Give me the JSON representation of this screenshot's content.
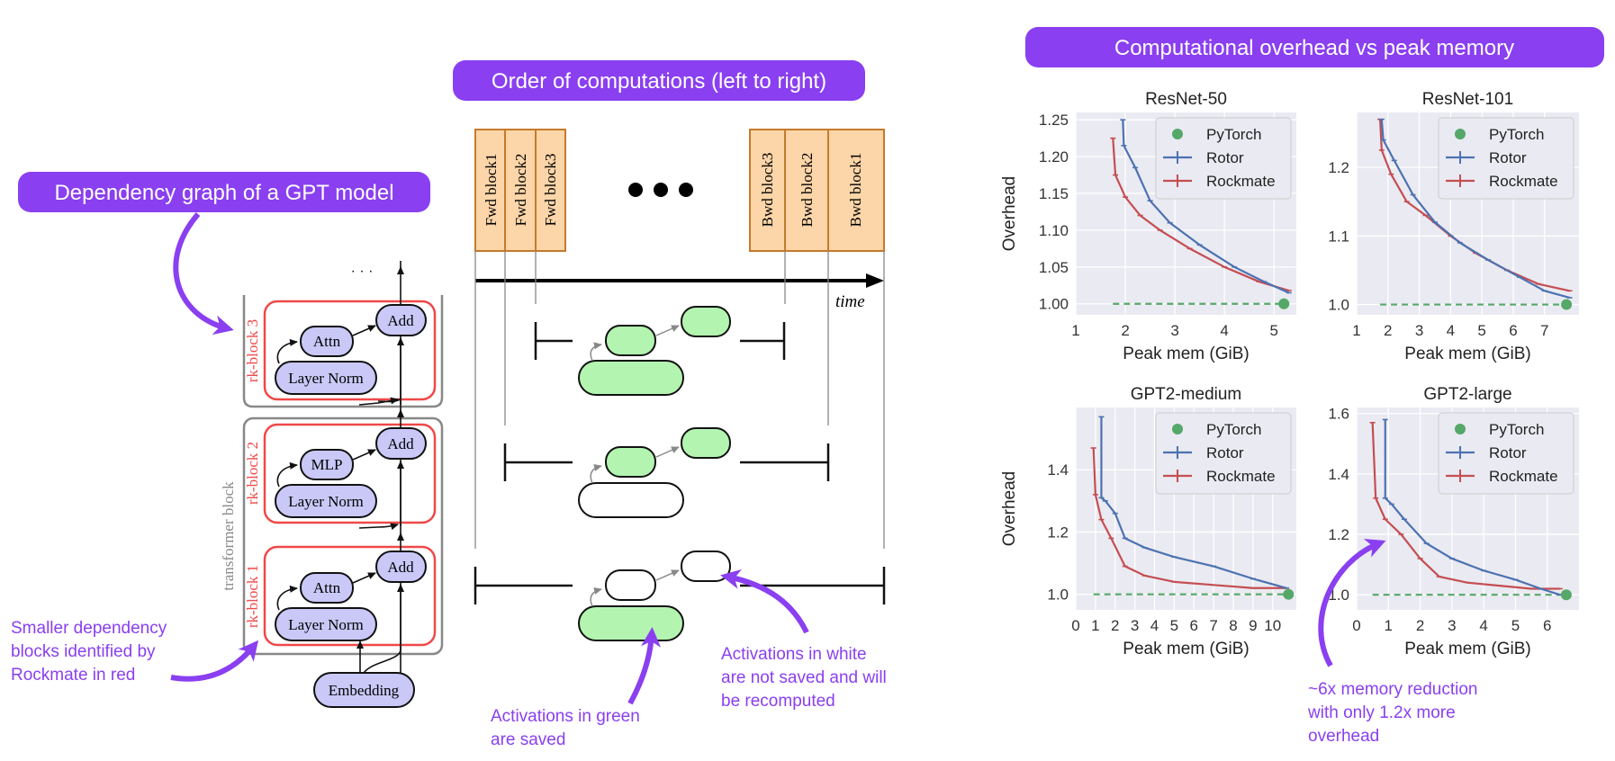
{
  "headers": {
    "dependency": "Dependency graph of a GPT model",
    "order": "Order of computations (left to right)",
    "overhead": "Computational overhead vs peak memory"
  },
  "graph": {
    "blocks": [
      "rk-block 3",
      "rk-block 2",
      "rk-block 1"
    ],
    "transformer_label": "transformer block",
    "nodes": {
      "add": "Add",
      "attn": "Attn",
      "mlp": "MLP",
      "layer_norm": "Layer Norm",
      "embedding": "Embedding"
    },
    "ellipsis": "· · ·"
  },
  "order": {
    "fwd_blocks": [
      "Fwd block1",
      "Fwd block2",
      "Fwd block3"
    ],
    "bwd_blocks": [
      "Bwd block3",
      "Bwd block2",
      "Bwd block1"
    ],
    "time_label": "time"
  },
  "annotations": {
    "smaller_blocks": [
      "Smaller dependency",
      "blocks identified by",
      "Rockmate in red"
    ],
    "green_saved": [
      "Activations in green",
      "are saved"
    ],
    "white_recomputed": [
      "Activations in white",
      "are not saved and will",
      "be recomputed"
    ],
    "memory_reduction": [
      "~6x memory reduction",
      "with only 1.2x more",
      "overhead"
    ]
  },
  "colors": {
    "accent": "#8a3ff0",
    "rotor": "#4c72b0",
    "rockmate": "#c44e52",
    "pytorch": "#55a868",
    "activation_green": "#b3f5b0",
    "block_orange": "#fcd5a8",
    "node_lavender": "#c9c8f7",
    "rk_red": "#f04848"
  },
  "chart_data": [
    {
      "type": "line",
      "title": "ResNet-50",
      "xlabel": "Peak mem (GiB)",
      "ylabel": "Overhead",
      "xlim": [
        1,
        5.45
      ],
      "ylim": [
        0.985,
        1.26
      ],
      "xticks": [
        "1",
        "2",
        "3",
        "4",
        "5"
      ],
      "yticks": [
        "1.00",
        "1.05",
        "1.10",
        "1.15",
        "1.20",
        "1.25"
      ],
      "legend": [
        "PyTorch",
        "Rotor",
        "Rockmate"
      ],
      "legend_position": "top-right",
      "series": [
        {
          "name": "PyTorch",
          "x": [
            5.2
          ],
          "y": [
            1.0
          ]
        },
        {
          "name": "Rotor",
          "x": [
            1.95,
            1.97,
            2.2,
            2.5,
            2.9,
            3.5,
            4.2,
            4.8,
            5.3
          ],
          "y": [
            1.25,
            1.215,
            1.185,
            1.14,
            1.11,
            1.08,
            1.05,
            1.03,
            1.015
          ]
        },
        {
          "name": "Rockmate",
          "x": [
            1.75,
            1.8,
            2.0,
            2.3,
            2.7,
            3.3,
            4.0,
            4.7,
            5.3
          ],
          "y": [
            1.225,
            1.175,
            1.145,
            1.12,
            1.1,
            1.075,
            1.05,
            1.03,
            1.018
          ]
        }
      ]
    },
    {
      "type": "line",
      "title": "ResNet-101",
      "xlabel": "Peak mem (GiB)",
      "ylabel": "",
      "xlim": [
        1,
        8.1
      ],
      "ylim": [
        0.985,
        1.28
      ],
      "xticks": [
        "1",
        "2",
        "3",
        "4",
        "5",
        "6",
        "7"
      ],
      "yticks": [
        "1.0",
        "1.1",
        "1.2"
      ],
      "legend": [
        "PyTorch",
        "Rotor",
        "Rockmate"
      ],
      "legend_position": "top-right",
      "series": [
        {
          "name": "PyTorch",
          "x": [
            7.7
          ],
          "y": [
            1.0
          ]
        },
        {
          "name": "Rotor",
          "x": [
            1.8,
            1.85,
            2.2,
            2.8,
            3.5,
            4.3,
            5.2,
            6.2,
            7.0,
            7.8
          ],
          "y": [
            1.27,
            1.24,
            1.21,
            1.16,
            1.12,
            1.09,
            1.065,
            1.04,
            1.02,
            1.01
          ]
        },
        {
          "name": "Rockmate",
          "x": [
            1.75,
            1.8,
            2.1,
            2.6,
            3.2,
            4.0,
            4.8,
            5.8,
            6.8,
            7.8
          ],
          "y": [
            1.27,
            1.225,
            1.19,
            1.15,
            1.13,
            1.1,
            1.075,
            1.05,
            1.03,
            1.02
          ]
        }
      ]
    },
    {
      "type": "line",
      "title": "GPT2-medium",
      "xlabel": "Peak mem (GiB)",
      "ylabel": "Overhead",
      "xlim": [
        0,
        11.2
      ],
      "ylim": [
        0.95,
        1.6
      ],
      "xticks": [
        "0",
        "1",
        "2",
        "3",
        "4",
        "5",
        "6",
        "7",
        "8",
        "9",
        "10"
      ],
      "yticks": [
        "1.0",
        "1.2",
        "1.4"
      ],
      "legend": [
        "PyTorch",
        "Rotor",
        "Rockmate"
      ],
      "legend_position": "top-right",
      "series": [
        {
          "name": "PyTorch",
          "x": [
            10.8
          ],
          "y": [
            1.0
          ]
        },
        {
          "name": "Rotor",
          "x": [
            1.3,
            1.3,
            1.5,
            2.0,
            2.5,
            3.5,
            5.0,
            7.0,
            9.0,
            10.7
          ],
          "y": [
            1.57,
            1.31,
            1.3,
            1.26,
            1.18,
            1.15,
            1.12,
            1.09,
            1.05,
            1.02
          ]
        },
        {
          "name": "Rockmate",
          "x": [
            0.9,
            1.0,
            1.3,
            1.8,
            2.5,
            3.5,
            5.0,
            7.0,
            9.0,
            10.7
          ],
          "y": [
            1.47,
            1.32,
            1.24,
            1.18,
            1.09,
            1.06,
            1.04,
            1.03,
            1.02,
            1.02
          ]
        }
      ]
    },
    {
      "type": "line",
      "title": "GPT2-large",
      "xlabel": "Peak mem (GiB)",
      "ylabel": "",
      "xlim": [
        0,
        7.0
      ],
      "ylim": [
        0.95,
        1.62
      ],
      "xticks": [
        "0",
        "1",
        "2",
        "3",
        "4",
        "5",
        "6"
      ],
      "yticks": [
        "1.0",
        "1.2",
        "1.4",
        "1.6"
      ],
      "legend": [
        "PyTorch",
        "Rotor",
        "Rockmate"
      ],
      "legend_position": "top-right",
      "series": [
        {
          "name": "PyTorch",
          "x": [
            6.6
          ],
          "y": [
            1.0
          ]
        },
        {
          "name": "Rotor",
          "x": [
            0.9,
            0.9,
            1.1,
            1.5,
            2.2,
            3.0,
            4.0,
            5.0,
            5.8,
            6.4
          ],
          "y": [
            1.58,
            1.32,
            1.3,
            1.25,
            1.17,
            1.12,
            1.08,
            1.05,
            1.02,
            1.0
          ]
        },
        {
          "name": "Rockmate",
          "x": [
            0.5,
            0.6,
            0.9,
            1.4,
            2.0,
            2.6,
            3.5,
            4.5,
            5.5,
            6.4
          ],
          "y": [
            1.57,
            1.32,
            1.25,
            1.2,
            1.12,
            1.06,
            1.04,
            1.03,
            1.02,
            1.02
          ]
        }
      ]
    }
  ]
}
